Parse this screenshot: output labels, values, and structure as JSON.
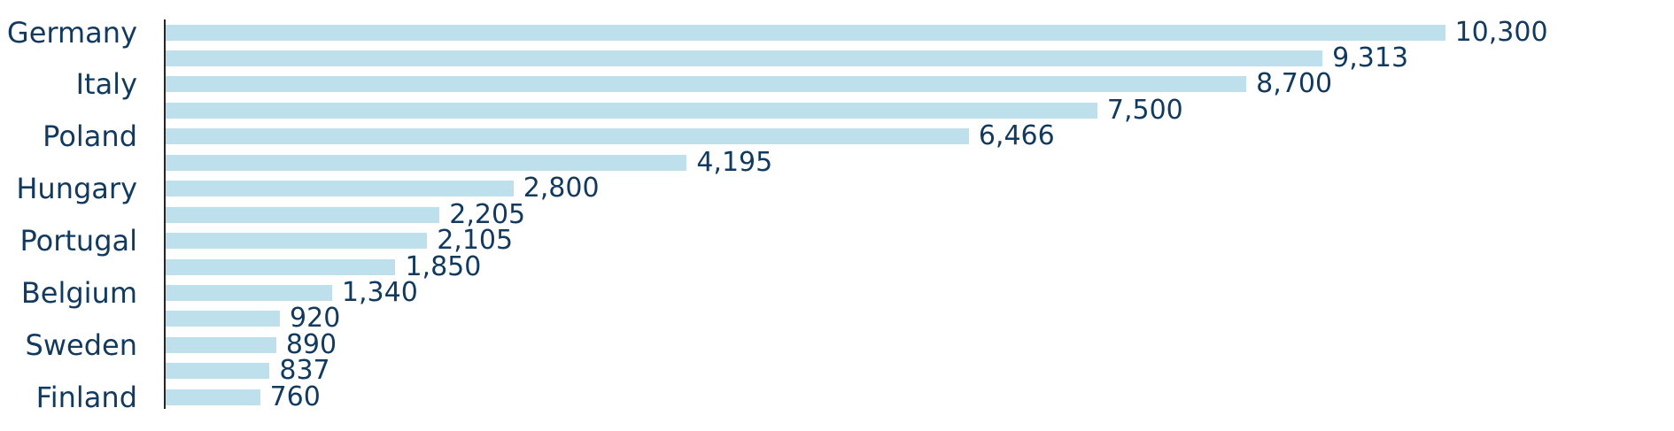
{
  "chart_data": {
    "type": "bar",
    "orientation": "horizontal",
    "title": "",
    "xlabel": "",
    "ylabel": "",
    "grid": false,
    "legend": false,
    "axis_lines": "left-spine-only",
    "categories": [
      "Germany",
      "",
      "Italy",
      "",
      "Poland",
      "",
      "Hungary",
      "",
      "Portugal",
      "",
      "Belgium",
      "",
      "Sweden",
      "",
      "Finland"
    ],
    "values": [
      10300,
      9313,
      8700,
      7500,
      6466,
      4195,
      2800,
      2205,
      2105,
      1850,
      1340,
      920,
      890,
      837,
      760
    ],
    "value_labels": [
      "10,300",
      "9,313",
      "8,700",
      "7,500",
      "6,466",
      "4,195",
      "2,800",
      "2,205",
      "2,105",
      "1,850",
      "1,340",
      "920",
      "890",
      "837",
      "760"
    ],
    "xlim": [
      0,
      12000
    ],
    "colors": {
      "bar": "#bde0ec",
      "text": "#123a5e",
      "axis": "#262626",
      "background": "#ffffff"
    }
  }
}
